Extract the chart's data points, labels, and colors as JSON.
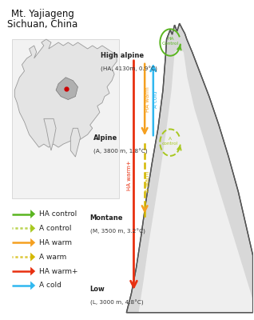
{
  "title_line1": "Mt. Yajiageng",
  "title_line2": "Sichuan, China",
  "background_color": "#ffffff",
  "arrow_green_color": "#5ab520",
  "arrow_green_dashed_color": "#a8c820",
  "arrow_orange_color": "#f5a020",
  "arrow_yellow_dashed_color": "#d4b800",
  "arrow_red_color": "#e83010",
  "arrow_blue_color": "#30b8f0",
  "mountain_fill_light": "#e8e8e8",
  "mountain_fill_dark": "#c0c0c0",
  "mountain_outline": "#555555",
  "legend_items": [
    {
      "label": "HA control",
      "color": "#5ab520",
      "dashed": false
    },
    {
      "label": "A control",
      "color": "#a8c820",
      "dashed": true
    },
    {
      "label": "HA warm",
      "color": "#f5a020",
      "dashed": false
    },
    {
      "label": "A warm",
      "color": "#d4b800",
      "dashed": true
    },
    {
      "label": "HA warm+",
      "color": "#e83010",
      "dashed": false
    },
    {
      "label": "A cold",
      "color": "#30b8f0",
      "dashed": false
    }
  ],
  "sites": [
    {
      "name": "High alpine",
      "detail": "(HA, 4130m, 0.9°C)",
      "nx": 0.375,
      "ny": 0.795
    },
    {
      "name": "Alpine",
      "detail": "(A, 3800 m, 1.8°C)",
      "nx": 0.345,
      "ny": 0.535
    },
    {
      "name": "Montane",
      "detail": "(M, 3500 m, 3.2°C)",
      "nx": 0.33,
      "ny": 0.285
    },
    {
      "name": "Low",
      "detail": "(L, 3000 m, 4.8°C)",
      "nx": 0.33,
      "ny": 0.06
    }
  ]
}
